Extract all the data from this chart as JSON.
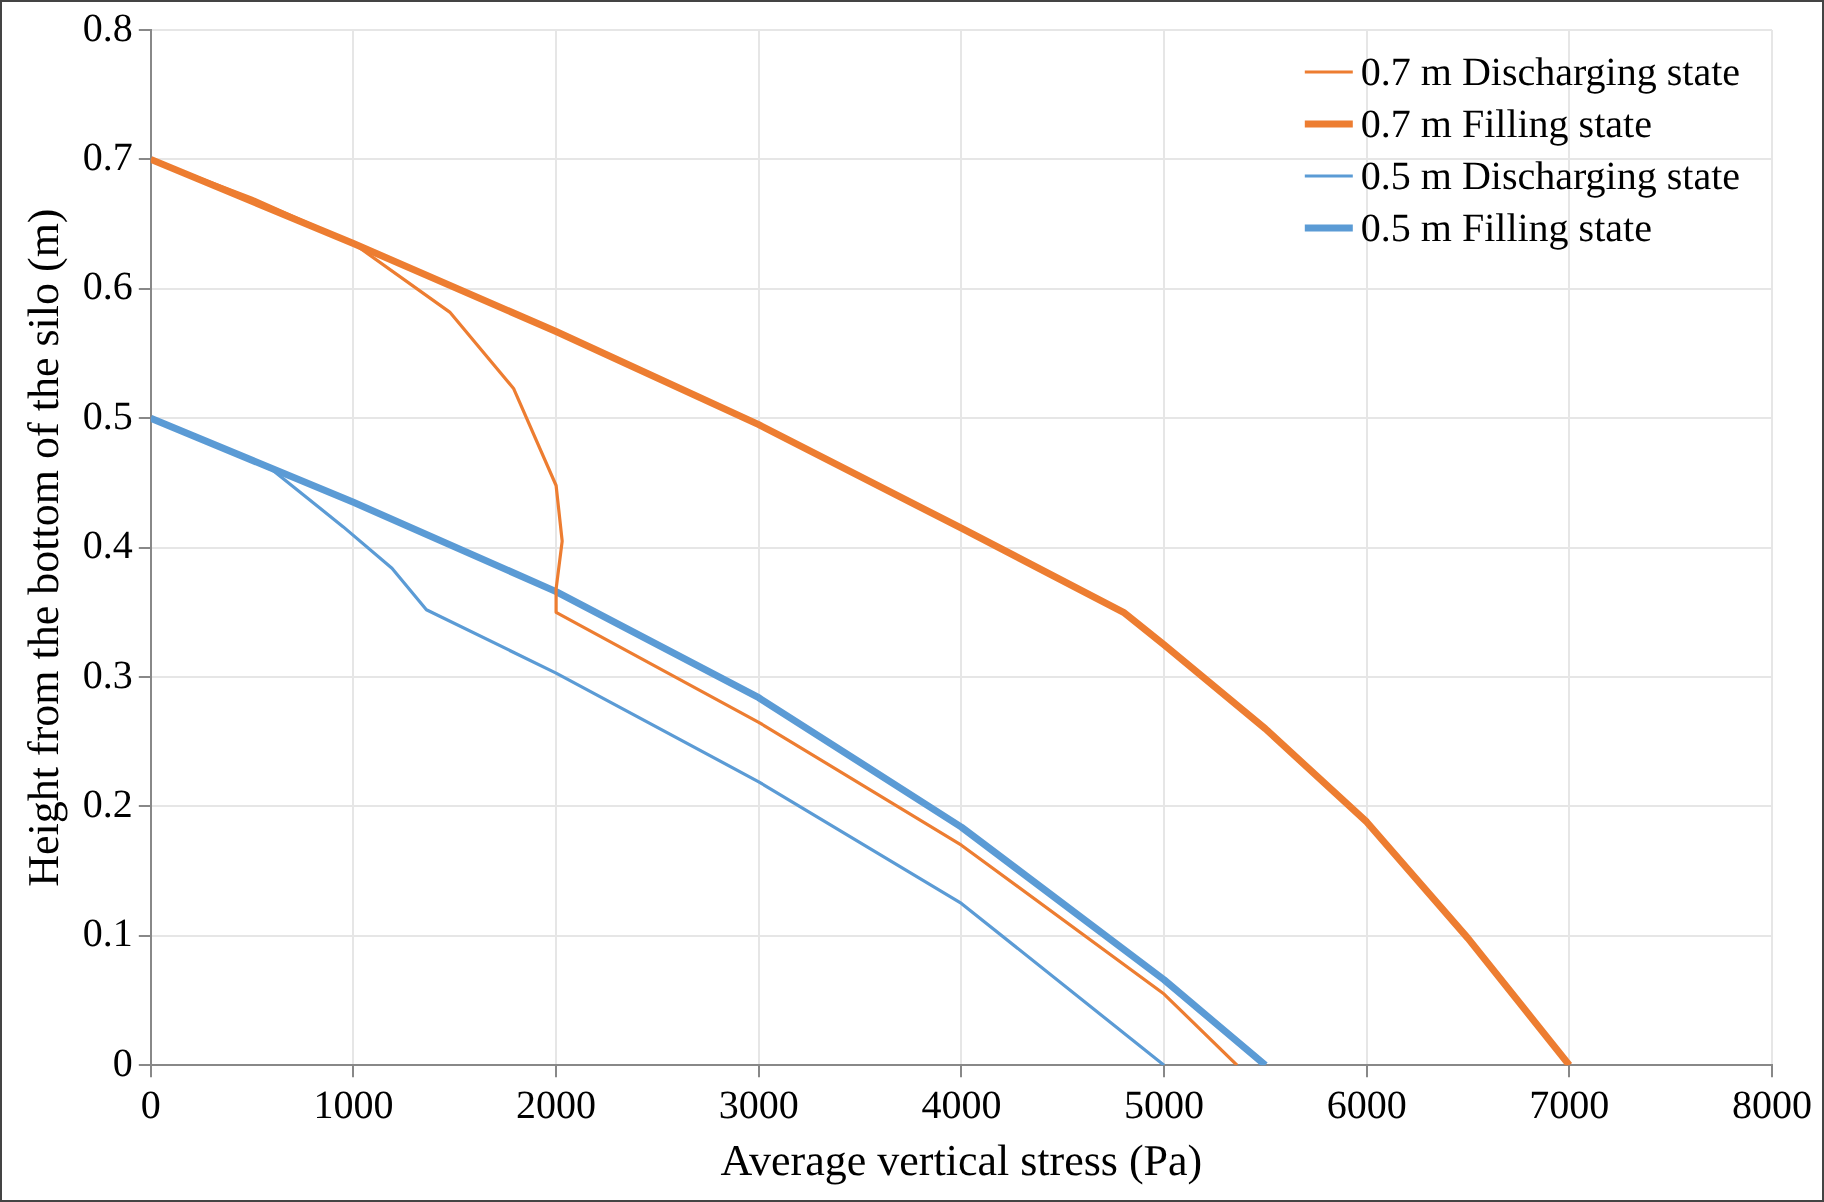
{
  "chart_data": {
    "type": "line",
    "xlabel": "Average vertical stress (Pa)",
    "ylabel": "Height from the bottom of the silo (m)",
    "xlim": [
      0,
      8000
    ],
    "xticks": [
      0,
      1000,
      2000,
      3000,
      4000,
      5000,
      6000,
      7000,
      8000
    ],
    "ylim": [
      0,
      0.8
    ],
    "yticks": [
      0,
      0.1,
      0.2,
      0.3,
      0.4,
      0.5,
      0.6,
      0.7,
      0.8
    ],
    "grid": true,
    "legend": "top right",
    "marker": "none",
    "line_style": "solid",
    "series": [
      {
        "name": "0.7 m Discharging state",
        "color": "#ed7d31",
        "x": [
          0,
          500,
          1000,
          1475,
          1790,
          2000,
          2030,
          2000,
          2000,
          3000,
          4000,
          5000,
          5360
        ],
        "values": [
          0.7,
          0.67,
          0.635,
          0.582,
          0.523,
          0.448,
          0.405,
          0.368,
          0.35,
          0.265,
          0.17,
          0.055,
          0
        ]
      },
      {
        "name": "0.7 m Filling state",
        "color": "#ed7d31",
        "x": [
          0,
          1000,
          2000,
          3000,
          4000,
          4800,
          5000,
          5500,
          6000,
          6500,
          7000
        ],
        "values": [
          0.7,
          0.635,
          0.567,
          0.495,
          0.415,
          0.35,
          0.325,
          0.26,
          0.188,
          0.098,
          0
        ]
      },
      {
        "name": "0.5 m Discharging state",
        "color": "#5b9bd5",
        "x": [
          0,
          600,
          950,
          1190,
          1360,
          2000,
          3000,
          4000,
          5000
        ],
        "values": [
          0.5,
          0.46,
          0.416,
          0.384,
          0.352,
          0.303,
          0.219,
          0.125,
          0
        ]
      },
      {
        "name": "0.5 m Filling state",
        "color": "#5b9bd5",
        "x": [
          0,
          1000,
          2000,
          3000,
          4000,
          5000,
          5500
        ],
        "values": [
          0.5,
          0.435,
          0.366,
          0.284,
          0.184,
          0.066,
          0
        ]
      }
    ]
  }
}
